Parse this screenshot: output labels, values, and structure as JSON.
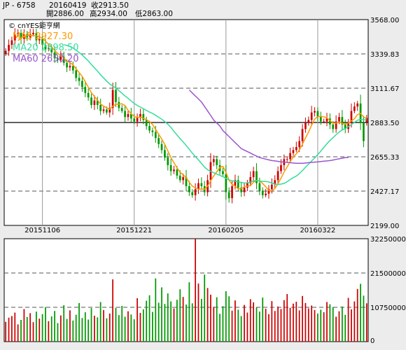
{
  "header": {
    "symbol": "JP - 6758",
    "date": "20160419",
    "close": "收2913.50",
    "open": "開2886.00",
    "high": "高2934.00",
    "low": "低2863.00"
  },
  "source": "© cnYES鉅亨網",
  "colors": {
    "up": "#cc0000",
    "down": "#009900",
    "ma5": "#ff9900",
    "ma20": "#33dd99",
    "ma60": "#9955cc"
  },
  "chart_data": [
    {
      "type": "candlestick",
      "title": "",
      "y_tick_labels": [
        "3568.00",
        "3339.83",
        "3111.67",
        "2883.50",
        "2655.33",
        "2427.17",
        "2199.00"
      ],
      "ylim": [
        2199,
        3568
      ],
      "x_tick_labels": [
        {
          "label": "20151106",
          "index": 12
        },
        {
          "label": "20151221",
          "index": 42
        },
        {
          "label": "20160205",
          "index": 72
        },
        {
          "label": "20160322",
          "index": 102
        }
      ],
      "grid": true,
      "reference_line": 2883.5,
      "legend": [
        {
          "name": "MA5",
          "value": "MA5 2927.30",
          "color_key": "ma5"
        },
        {
          "name": "MA20",
          "value": "MA20 2898.50",
          "color_key": "ma20"
        },
        {
          "name": "MA60",
          "value": "MA60 2650.20",
          "color_key": "ma60"
        }
      ],
      "closes": [
        3360,
        3400,
        3430,
        3470,
        3480,
        3440,
        3470,
        3450,
        3470,
        3480,
        3430,
        3440,
        3400,
        3370,
        3380,
        3350,
        3310,
        3300,
        3320,
        3280,
        3250,
        3260,
        3230,
        3180,
        3160,
        3120,
        3080,
        3050,
        3000,
        3030,
        3000,
        2960,
        2970,
        2950,
        2980,
        3100,
        3020,
        2980,
        2960,
        2920,
        2940,
        2910,
        2890,
        2920,
        2940,
        2900,
        2860,
        2830,
        2820,
        2780,
        2740,
        2700,
        2650,
        2600,
        2560,
        2570,
        2530,
        2500,
        2520,
        2460,
        2420,
        2400,
        2440,
        2480,
        2460,
        2420,
        2500,
        2620,
        2640,
        2600,
        2560,
        2540,
        2420,
        2380,
        2460,
        2500,
        2450,
        2420,
        2450,
        2480,
        2520,
        2560,
        2480,
        2430,
        2400,
        2410,
        2440,
        2470,
        2500,
        2560,
        2600,
        2640,
        2640,
        2680,
        2700,
        2720,
        2760,
        2840,
        2880,
        2900,
        2950,
        2960,
        2920,
        2890,
        2890,
        2910,
        2870,
        2840,
        2890,
        2920,
        2870,
        2840,
        2880,
        2960,
        2990,
        3010,
        2880,
        2760,
        2913.5
      ],
      "ma60_start_index": 60,
      "ma60": [
        3100,
        3080,
        3060,
        3040,
        3020,
        2990,
        2960,
        2930,
        2900,
        2880,
        2860,
        2830,
        2810,
        2790,
        2770,
        2750,
        2730,
        2710,
        2700,
        2690,
        2680,
        2670,
        2660,
        2650,
        2645,
        2640,
        2635,
        2630,
        2628,
        2625,
        2622,
        2620,
        2618,
        2616,
        2614,
        2612,
        2612,
        2612,
        2614,
        2616,
        2618,
        2620,
        2622,
        2624,
        2626,
        2628,
        2630,
        2634,
        2638,
        2642,
        2646,
        2650,
        2650.2
      ],
      "last_candle": {
        "open": 2886,
        "high": 2934,
        "low": 2863,
        "close": 2913.5
      }
    },
    {
      "type": "bar",
      "title": "",
      "y_tick_labels": [
        "32250000",
        "21500000",
        "10750000",
        "0"
      ],
      "ylim": [
        0,
        32250000
      ],
      "grid": true,
      "volumes": [
        6.2,
        7.5,
        8.0,
        9.1,
        5.4,
        6.8,
        10.2,
        7.7,
        8.9,
        6.1,
        9.4,
        7.2,
        8.6,
        10.8,
        6.4,
        7.9,
        9.6,
        5.8,
        8.2,
        11.4,
        7.1,
        9.8,
        6.6,
        8.4,
        12.1,
        7.4,
        9.2,
        6.9,
        10.5,
        8.1,
        7.6,
        12.4,
        9.9,
        7.3,
        8.8,
        19.5,
        10.6,
        8.3,
        11.2,
        7.8,
        9.5,
        8.5,
        7.0,
        13.6,
        9.0,
        10.1,
        12.8,
        14.5,
        9.3,
        19.8,
        12.2,
        17.0,
        11.8,
        15.1,
        12.6,
        10.4,
        13.1,
        16.4,
        14.0,
        11.6,
        18.6,
        12.0,
        32.25,
        18.2,
        13.4,
        21.0,
        16.8,
        14.7,
        10.9,
        13.9,
        8.7,
        11.1,
        15.8,
        14.2,
        9.7,
        12.9,
        10.0,
        8.0,
        11.5,
        9.1,
        13.3,
        12.3,
        10.7,
        9.4,
        13.8,
        10.3,
        8.6,
        12.7,
        9.6,
        11.0,
        10.2,
        13.0,
        14.9,
        10.6,
        11.9,
        12.5,
        9.8,
        14.3,
        12.1,
        10.4,
        11.3,
        9.9,
        8.8,
        10.0,
        9.2,
        12.4,
        11.7,
        10.8,
        7.8,
        9.5,
        11.0,
        8.4,
        13.7,
        10.1,
        12.6,
        16.5,
        18.1,
        14.4,
        12.0
      ]
    }
  ]
}
